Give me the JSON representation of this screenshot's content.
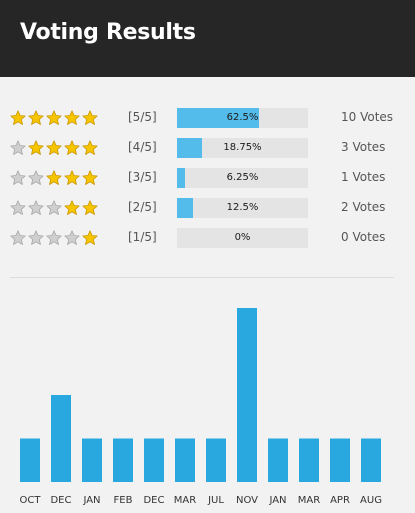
{
  "header": {
    "title": "Voting Results"
  },
  "ratings": [
    {
      "label": "[5/5]",
      "filled_stars": 5,
      "percent": 62.5,
      "percent_text": "62.5%",
      "votes": "10 Votes"
    },
    {
      "label": "[4/5]",
      "filled_stars": 4,
      "percent": 18.75,
      "percent_text": "18.75%",
      "votes": "3 Votes"
    },
    {
      "label": "[3/5]",
      "filled_stars": 3,
      "percent": 6.25,
      "percent_text": "6.25%",
      "votes": "1 Votes"
    },
    {
      "label": "[2/5]",
      "filled_stars": 2,
      "percent": 12.5,
      "percent_text": "12.5%",
      "votes": "2 Votes"
    },
    {
      "label": "[1/5]",
      "filled_stars": 1,
      "percent": 0,
      "percent_text": "0%",
      "votes": "0 Votes"
    }
  ],
  "colors": {
    "header_bg": "#262626",
    "bar_fill": "#54bcea",
    "bar_track": "#e4e4e4",
    "chart_bar": "#29a8e0",
    "star_gold": "#f7c400",
    "star_gray": "#cfcfcf"
  },
  "chart_data": {
    "type": "bar",
    "categories": [
      "OCT",
      "DEC",
      "JAN",
      "FEB",
      "DEC",
      "MAR",
      "JUL",
      "NOV",
      "JAN",
      "MAR",
      "APR",
      "AUG"
    ],
    "values": [
      1,
      2,
      1,
      1,
      1,
      1,
      1,
      4,
      1,
      1,
      1,
      1
    ],
    "ylim": [
      0,
      4
    ]
  }
}
